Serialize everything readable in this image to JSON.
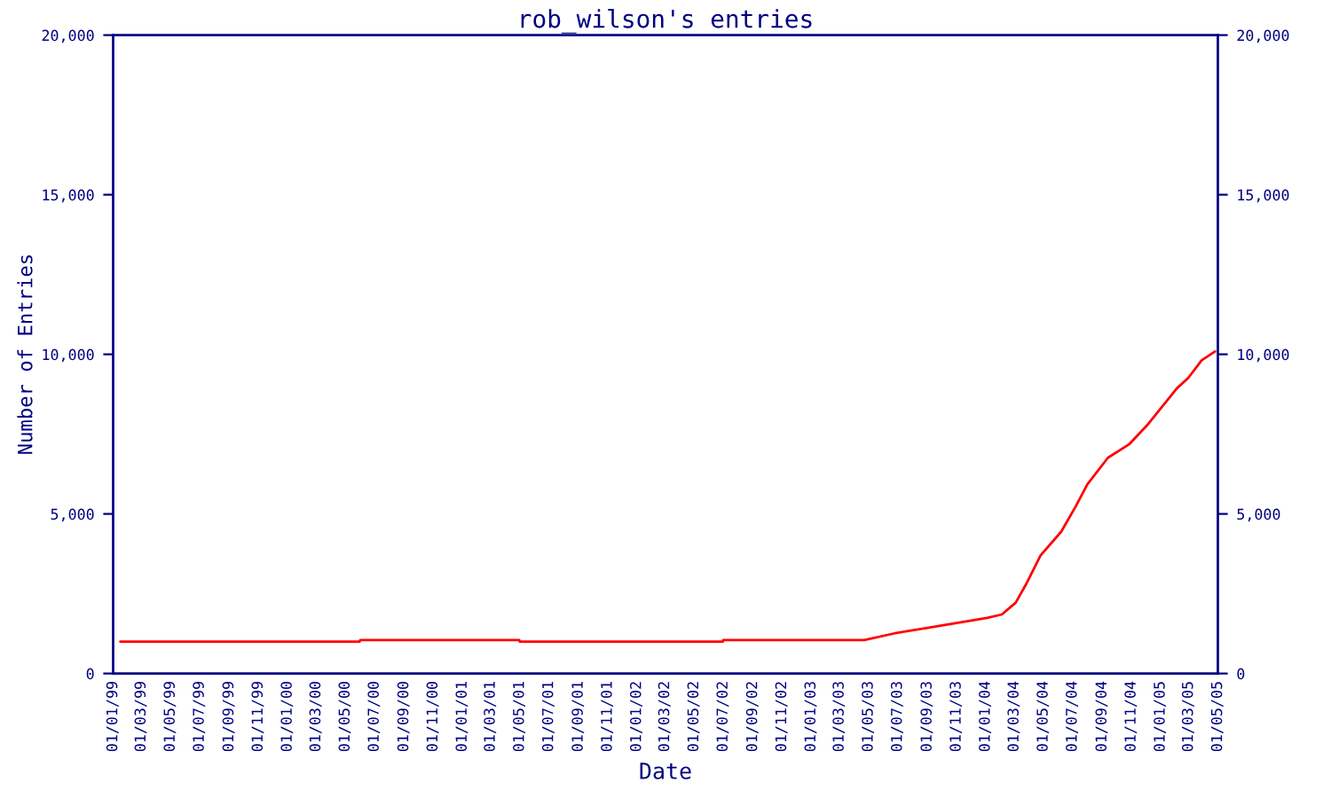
{
  "chart_data": {
    "type": "line",
    "title": "rob_wilson's entries",
    "xlabel": "Date",
    "ylabel": "Number of Entries",
    "x": [
      "1999-01-16",
      "2000-05-31",
      "2000-06-01",
      "2001-04-30",
      "2001-05-01",
      "2002-06-30",
      "2002-07-01",
      "2003-04-22",
      "2003-06-25",
      "2003-09-04",
      "2003-11-04",
      "2004-01-04",
      "2004-02-04",
      "2004-03-04",
      "2004-03-25",
      "2004-04-25",
      "2004-06-07",
      "2004-07-07",
      "2004-08-01",
      "2004-09-13",
      "2004-10-28",
      "2004-12-04",
      "2005-02-04",
      "2005-02-28",
      "2005-03-28",
      "2005-04-25"
    ],
    "series": [
      {
        "color": "#ff0000",
        "values": [
          1000,
          1000,
          1050,
          1050,
          1000,
          1000,
          1050,
          1050,
          1260,
          1440,
          1590,
          1740,
          1850,
          2220,
          2780,
          3700,
          4440,
          5220,
          5930,
          6760,
          7190,
          7780,
          8930,
          9260,
          9810,
          10090
        ]
      }
    ],
    "xlim": [
      "1999-01-01",
      "2005-05-01"
    ],
    "xticks": [
      {
        "value": "1999-01-01",
        "label": "01/01/99"
      },
      {
        "value": "1999-03-01",
        "label": "01/03/99"
      },
      {
        "value": "1999-05-01",
        "label": "01/05/99"
      },
      {
        "value": "1999-07-01",
        "label": "01/07/99"
      },
      {
        "value": "1999-09-01",
        "label": "01/09/99"
      },
      {
        "value": "1999-11-01",
        "label": "01/11/99"
      },
      {
        "value": "2000-01-01",
        "label": "01/01/00"
      },
      {
        "value": "2000-03-01",
        "label": "01/03/00"
      },
      {
        "value": "2000-05-01",
        "label": "01/05/00"
      },
      {
        "value": "2000-07-01",
        "label": "01/07/00"
      },
      {
        "value": "2000-09-01",
        "label": "01/09/00"
      },
      {
        "value": "2000-11-01",
        "label": "01/11/00"
      },
      {
        "value": "2001-01-01",
        "label": "01/01/01"
      },
      {
        "value": "2001-03-01",
        "label": "01/03/01"
      },
      {
        "value": "2001-05-01",
        "label": "01/05/01"
      },
      {
        "value": "2001-07-01",
        "label": "01/07/01"
      },
      {
        "value": "2001-09-01",
        "label": "01/09/01"
      },
      {
        "value": "2001-11-01",
        "label": "01/11/01"
      },
      {
        "value": "2002-01-01",
        "label": "01/01/02"
      },
      {
        "value": "2002-03-01",
        "label": "01/03/02"
      },
      {
        "value": "2002-05-01",
        "label": "01/05/02"
      },
      {
        "value": "2002-07-01",
        "label": "01/07/02"
      },
      {
        "value": "2002-09-01",
        "label": "01/09/02"
      },
      {
        "value": "2002-11-01",
        "label": "01/11/02"
      },
      {
        "value": "2003-01-01",
        "label": "01/01/03"
      },
      {
        "value": "2003-03-01",
        "label": "01/03/03"
      },
      {
        "value": "2003-05-01",
        "label": "01/05/03"
      },
      {
        "value": "2003-07-01",
        "label": "01/07/03"
      },
      {
        "value": "2003-09-01",
        "label": "01/09/03"
      },
      {
        "value": "2003-11-01",
        "label": "01/11/03"
      },
      {
        "value": "2004-01-01",
        "label": "01/01/04"
      },
      {
        "value": "2004-03-01",
        "label": "01/03/04"
      },
      {
        "value": "2004-05-01",
        "label": "01/05/04"
      },
      {
        "value": "2004-07-01",
        "label": "01/07/04"
      },
      {
        "value": "2004-09-01",
        "label": "01/09/04"
      },
      {
        "value": "2004-11-01",
        "label": "01/11/04"
      },
      {
        "value": "2005-01-01",
        "label": "01/01/05"
      },
      {
        "value": "2005-03-01",
        "label": "01/03/05"
      },
      {
        "value": "2005-05-01",
        "label": "01/05/05"
      }
    ],
    "ylim": [
      0,
      20000
    ],
    "yticks": [
      0,
      {
        "value": 5000,
        "label": "5,000"
      },
      {
        "value": 10000,
        "label": "10,000"
      },
      {
        "value": 15000,
        "label": "15,000"
      },
      {
        "value": 20000,
        "label": "20,000"
      }
    ],
    "y2lim": [
      0,
      20000
    ],
    "y2ticks": [
      0,
      {
        "value": 5000,
        "label": "5,000"
      },
      {
        "value": 10000,
        "label": "10,000"
      },
      {
        "value": 15000,
        "label": "15,000"
      },
      {
        "value": 20000,
        "label": "20,000"
      }
    ],
    "grid": false,
    "legend": false
  }
}
